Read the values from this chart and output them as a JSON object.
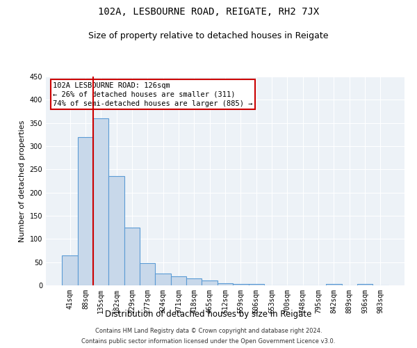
{
  "title": "102A, LESBOURNE ROAD, REIGATE, RH2 7JX",
  "subtitle": "Size of property relative to detached houses in Reigate",
  "xlabel": "Distribution of detached houses by size in Reigate",
  "ylabel": "Number of detached properties",
  "bar_labels": [
    "41sqm",
    "88sqm",
    "135sqm",
    "182sqm",
    "229sqm",
    "277sqm",
    "324sqm",
    "371sqm",
    "418sqm",
    "465sqm",
    "512sqm",
    "559sqm",
    "606sqm",
    "653sqm",
    "700sqm",
    "748sqm",
    "795sqm",
    "842sqm",
    "889sqm",
    "936sqm",
    "983sqm"
  ],
  "bar_heights": [
    65,
    320,
    360,
    235,
    125,
    48,
    25,
    20,
    15,
    10,
    5,
    3,
    3,
    0,
    0,
    0,
    0,
    3,
    0,
    3,
    0
  ],
  "bar_color": "#c8d8ea",
  "bar_edge_color": "#5b9bd5",
  "vline_x_idx": 1.5,
  "vline_color": "#cc0000",
  "annotation_text": "102A LESBOURNE ROAD: 126sqm\n← 26% of detached houses are smaller (311)\n74% of semi-detached houses are larger (885) →",
  "annotation_box_color": "#cc0000",
  "ylim": [
    0,
    450
  ],
  "yticks": [
    0,
    50,
    100,
    150,
    200,
    250,
    300,
    350,
    400,
    450
  ],
  "plot_bg_color": "#edf2f7",
  "fig_bg_color": "#ffffff",
  "footer1": "Contains HM Land Registry data © Crown copyright and database right 2024.",
  "footer2": "Contains public sector information licensed under the Open Government Licence v3.0.",
  "title_fontsize": 10,
  "subtitle_fontsize": 9,
  "xlabel_fontsize": 8.5,
  "ylabel_fontsize": 8,
  "tick_fontsize": 7,
  "annotation_fontsize": 7.5,
  "footer_fontsize": 6
}
